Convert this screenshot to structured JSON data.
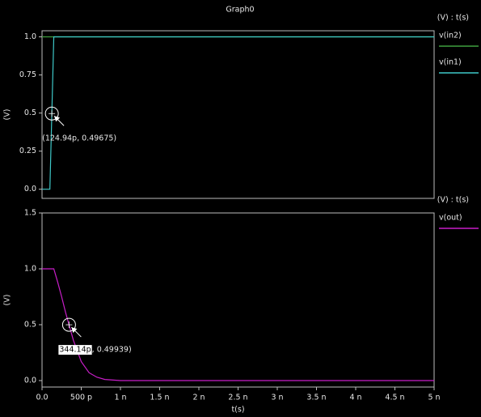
{
  "chart_data": [
    {
      "type": "line",
      "title": "Graph0",
      "ylabel": "(V)",
      "axis_note": "(V) : t(s)",
      "xlim": [
        0,
        5e-09
      ],
      "ylim": [
        -0.06,
        1.04
      ],
      "yticks": [
        {
          "value": 0,
          "label": "0.0"
        },
        0.25,
        0.5,
        0.75,
        {
          "value": 1,
          "label": "1.0"
        }
      ],
      "series": [
        {
          "name": "v(in2)",
          "color": "#3f9f3f",
          "x": [
            0,
            5e-09
          ],
          "values": [
            1,
            1
          ]
        },
        {
          "name": "v(in1)",
          "color": "#3ec8c8",
          "x": [
            0,
            1e-10,
            1.5e-10,
            5e-09
          ],
          "values": [
            0,
            0,
            1,
            1
          ]
        }
      ],
      "annotations": [
        {
          "text": "(124.94p, 0.49675)",
          "x": 1.2494e-10,
          "y": 0.49675
        }
      ]
    },
    {
      "type": "line",
      "ylabel": "(V)",
      "xlabel": "t(s)",
      "axis_note": "(V) : t(s)",
      "xlim": [
        0,
        5e-09
      ],
      "ylim": [
        -0.058,
        1.5
      ],
      "xticks": [
        {
          "value": 0,
          "label": "0.0"
        },
        {
          "value": 5e-10,
          "label": "500 p"
        },
        {
          "value": 1e-09,
          "label": "1 n"
        },
        {
          "value": 1.5e-09,
          "label": "1.5 n"
        },
        {
          "value": 2e-09,
          "label": "2 n"
        },
        {
          "value": 2.5e-09,
          "label": "2.5 n"
        },
        {
          "value": 3e-09,
          "label": "3 n"
        },
        {
          "value": 3.5e-09,
          "label": "3.5 n"
        },
        {
          "value": 4e-09,
          "label": "4 n"
        },
        {
          "value": 4.5e-09,
          "label": "4.5 n"
        },
        {
          "value": 5e-09,
          "label": "5 n"
        }
      ],
      "yticks": [
        {
          "value": 0,
          "label": "0.0"
        },
        0.5,
        {
          "value": 1,
          "label": "1.0"
        },
        1.5
      ],
      "series": [
        {
          "name": "v(out)",
          "color": "#c81ec8",
          "x": [
            0,
            1.5e-10,
            2e-10,
            2.5e-10,
            3e-10,
            3.4414e-10,
            4e-10,
            5e-10,
            6e-10,
            7e-10,
            8e-10,
            1e-09,
            5e-09
          ],
          "values": [
            1,
            1,
            0.88,
            0.75,
            0.61,
            0.49939,
            0.36,
            0.17,
            0.07,
            0.03,
            0.01,
            0,
            0
          ]
        }
      ],
      "annotations": [
        {
          "text_highlight": "344.14p",
          "text": ", 0.49939)",
          "x": 3.4414e-10,
          "y": 0.49939
        }
      ]
    }
  ]
}
